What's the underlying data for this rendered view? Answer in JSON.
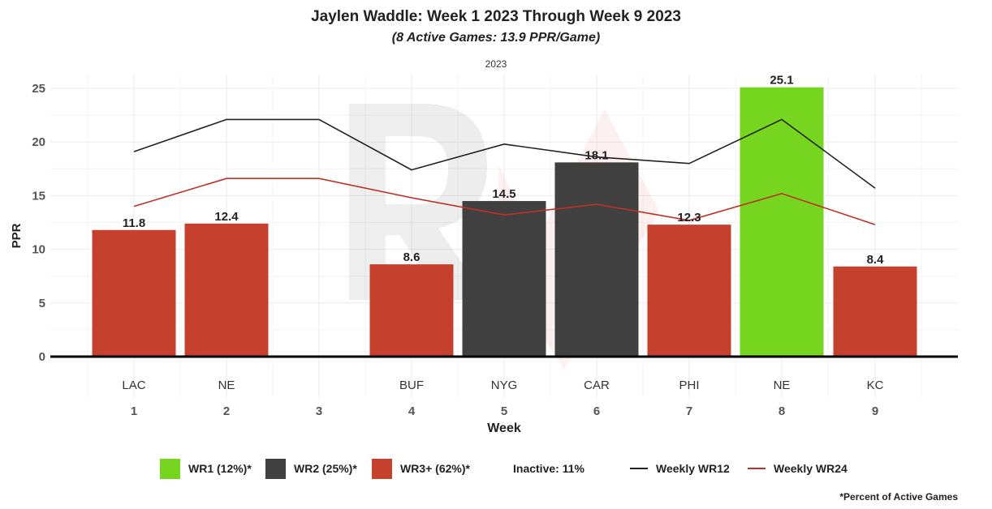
{
  "title": "Jaylen Waddle: Week 1 2023 Through Week 9 2023",
  "subtitle": "(8 Active Games: 13.9 PPR/Game)",
  "facet_label": "2023",
  "footnote": "*Percent of Active Games",
  "colors": {
    "wr1": "#76d61f",
    "wr2": "#404040",
    "wr3": "#c5402d",
    "wr12_line": "#222222",
    "wr24_line": "#c03022"
  },
  "legend": {
    "wr1": "WR1 (12%)*",
    "wr2": "WR2 (25%)*",
    "wr3": "WR3+ (62%)*",
    "inactive": "Inactive: 11%",
    "wr12": "Weekly WR12",
    "wr24": "Weekly WR24"
  },
  "chart_data": {
    "type": "bar",
    "title": "Jaylen Waddle: Week 1 2023 Through Week 9 2023",
    "subtitle": "(8 Active Games: 13.9 PPR/Game)",
    "xlabel": "Week",
    "ylabel": "PPR",
    "ylim": [
      0,
      26
    ],
    "yticks": [
      0,
      5,
      10,
      15,
      20,
      25
    ],
    "weeks": [
      "1",
      "2",
      "3",
      "4",
      "5",
      "6",
      "7",
      "8",
      "9"
    ],
    "opponents": [
      "LAC",
      "NE",
      "",
      "BUF",
      "NYG",
      "CAR",
      "PHI",
      "NE",
      "KC"
    ],
    "values": [
      11.8,
      12.4,
      null,
      8.6,
      14.5,
      18.1,
      12.3,
      25.1,
      8.4
    ],
    "tiers": [
      "WR3+",
      "WR3+",
      null,
      "WR3+",
      "WR2",
      "WR2",
      "WR3+",
      "WR1",
      "WR3+"
    ],
    "series": [
      {
        "name": "Weekly WR12",
        "values": [
          19.1,
          22.1,
          22.1,
          17.4,
          19.8,
          18.6,
          18.0,
          22.1,
          15.7
        ]
      },
      {
        "name": "Weekly WR24",
        "values": [
          14.0,
          16.6,
          16.6,
          14.8,
          13.2,
          14.2,
          12.7,
          15.2,
          12.3
        ]
      }
    ],
    "grid": true,
    "legend_position": "bottom"
  }
}
